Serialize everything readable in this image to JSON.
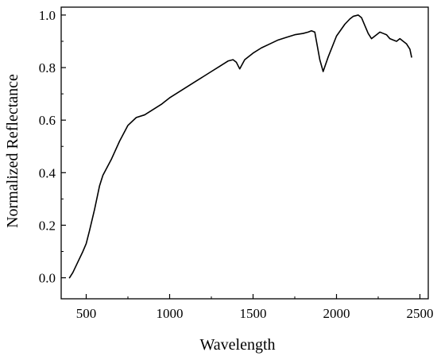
{
  "chart_data": {
    "type": "line",
    "xlabel": "Wavelength",
    "ylabel": "Normalized  Reflectance",
    "xlim": [
      350,
      2550
    ],
    "ylim": [
      -0.08,
      1.03
    ],
    "x_ticks": [
      500,
      1000,
      1500,
      2000,
      2500
    ],
    "x_tick_labels": [
      "500",
      "1000",
      "1500",
      "2000",
      "2500"
    ],
    "y_ticks": [
      0.0,
      0.2,
      0.4,
      0.6,
      0.8,
      1.0
    ],
    "y_tick_labels": [
      "0.0",
      "0.2",
      "0.4",
      "0.6",
      "0.8",
      "1.0"
    ],
    "grid": false,
    "line_color": "#000000",
    "series": [
      {
        "x": [
          400,
          420,
          450,
          480,
          500,
          520,
          550,
          580,
          600,
          650,
          700,
          750,
          800,
          850,
          900,
          950,
          1000,
          1050,
          1100,
          1150,
          1200,
          1250,
          1300,
          1350,
          1380,
          1400,
          1420,
          1450,
          1500,
          1550,
          1600,
          1650,
          1700,
          1750,
          1800,
          1830,
          1850,
          1870,
          1880,
          1900,
          1920,
          1950,
          2000,
          2050,
          2080,
          2100,
          2130,
          2150,
          2170,
          2190,
          2210,
          2220,
          2240,
          2260,
          2280,
          2300,
          2320,
          2340,
          2360,
          2380,
          2400,
          2420,
          2440,
          2450
        ],
        "y": [
          0.0,
          0.02,
          0.06,
          0.1,
          0.13,
          0.18,
          0.26,
          0.35,
          0.39,
          0.45,
          0.52,
          0.58,
          0.61,
          0.62,
          0.64,
          0.66,
          0.685,
          0.705,
          0.725,
          0.745,
          0.765,
          0.785,
          0.805,
          0.825,
          0.83,
          0.82,
          0.795,
          0.83,
          0.855,
          0.875,
          0.89,
          0.905,
          0.915,
          0.925,
          0.93,
          0.935,
          0.94,
          0.935,
          0.9,
          0.83,
          0.785,
          0.84,
          0.92,
          0.965,
          0.985,
          0.995,
          1.0,
          0.99,
          0.96,
          0.93,
          0.91,
          0.915,
          0.925,
          0.935,
          0.93,
          0.925,
          0.91,
          0.905,
          0.9,
          0.91,
          0.9,
          0.89,
          0.87,
          0.84
        ]
      }
    ]
  }
}
